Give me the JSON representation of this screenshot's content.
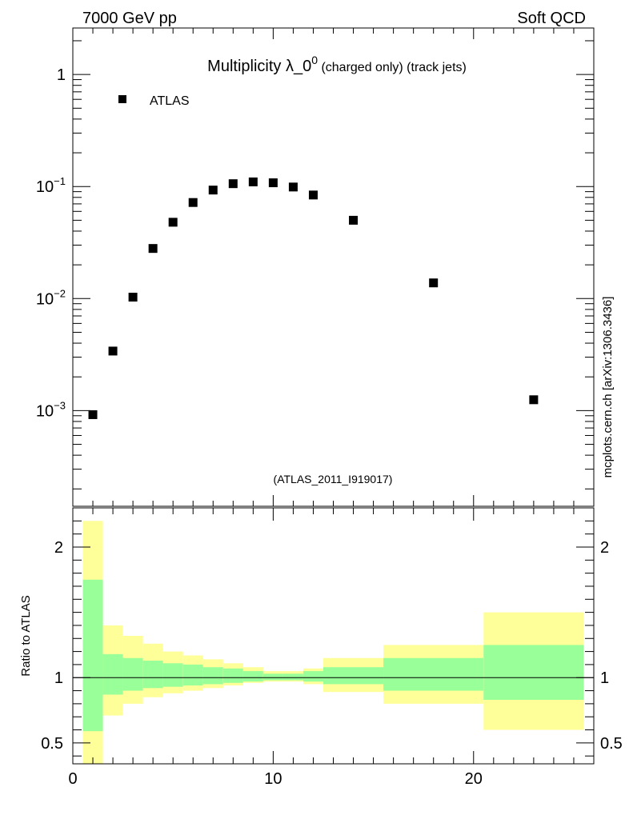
{
  "header": {
    "left": "7000 GeV pp",
    "right": "Soft QCD"
  },
  "side_label": "mcplots.cern.ch [arXiv:1306.3436]",
  "chart_data": [
    {
      "type": "scatter",
      "title_main": "Multiplicity λ_0",
      "title_sup": "0",
      "title_rest": " (charged only) (track jets)",
      "watermark": "(ATLAS_2011_I919017)",
      "yscale": "log",
      "xlim": [
        0,
        26
      ],
      "ylim": [
        0.00014,
        2.6
      ],
      "y_tick_labels": [
        {
          "value": 1,
          "base": "1",
          "exp": ""
        },
        {
          "value": 0.1,
          "base": "10",
          "exp": "−1"
        },
        {
          "value": 0.01,
          "base": "10",
          "exp": "−2"
        },
        {
          "value": 0.001,
          "base": "10",
          "exp": "−3"
        }
      ],
      "legend": {
        "label": "ATLAS",
        "position": "top-left"
      },
      "series": [
        {
          "name": "ATLAS",
          "marker": "square",
          "color": "#000000",
          "x": [
            1,
            2,
            3,
            4,
            5,
            6,
            7,
            8,
            9,
            10,
            11,
            12,
            14,
            18,
            23
          ],
          "y": [
            0.00092,
            0.0034,
            0.0103,
            0.028,
            0.048,
            0.072,
            0.093,
            0.106,
            0.11,
            0.108,
            0.099,
            0.084,
            0.05,
            0.0138,
            0.00125
          ]
        }
      ]
    },
    {
      "type": "area",
      "ylabel": "Ratio to ATLAS",
      "xlim": [
        0,
        26
      ],
      "ylim": [
        0.34,
        2.3
      ],
      "x_ticks": [
        0,
        10,
        20
      ],
      "y_ticks": [
        0.5,
        1,
        2
      ],
      "reference_line": 1,
      "colors": {
        "outer_band": "#ffff99",
        "inner_band": "#99ff99"
      },
      "bins": [
        {
          "xlo": 0.5,
          "xhi": 1.5,
          "inner": [
            0.59,
            1.75
          ],
          "outer": [
            0.3,
            2.2
          ]
        },
        {
          "xlo": 1.5,
          "xhi": 2.5,
          "inner": [
            0.87,
            1.18
          ],
          "outer": [
            0.71,
            1.4
          ]
        },
        {
          "xlo": 2.5,
          "xhi": 3.5,
          "inner": [
            0.9,
            1.15
          ],
          "outer": [
            0.8,
            1.32
          ]
        },
        {
          "xlo": 3.5,
          "xhi": 4.5,
          "inner": [
            0.92,
            1.13
          ],
          "outer": [
            0.85,
            1.26
          ]
        },
        {
          "xlo": 4.5,
          "xhi": 5.5,
          "inner": [
            0.93,
            1.11
          ],
          "outer": [
            0.88,
            1.2
          ]
        },
        {
          "xlo": 5.5,
          "xhi": 6.5,
          "inner": [
            0.94,
            1.1
          ],
          "outer": [
            0.9,
            1.17
          ]
        },
        {
          "xlo": 6.5,
          "xhi": 7.5,
          "inner": [
            0.95,
            1.08
          ],
          "outer": [
            0.92,
            1.14
          ]
        },
        {
          "xlo": 7.5,
          "xhi": 8.5,
          "inner": [
            0.96,
            1.07
          ],
          "outer": [
            0.94,
            1.11
          ]
        },
        {
          "xlo": 8.5,
          "xhi": 9.5,
          "inner": [
            0.97,
            1.05
          ],
          "outer": [
            0.96,
            1.08
          ]
        },
        {
          "xlo": 9.5,
          "xhi": 10.5,
          "inner": [
            0.98,
            1.03
          ],
          "outer": [
            0.97,
            1.05
          ]
        },
        {
          "xlo": 10.5,
          "xhi": 11.5,
          "inner": [
            0.98,
            1.03
          ],
          "outer": [
            0.97,
            1.05
          ]
        },
        {
          "xlo": 11.5,
          "xhi": 12.5,
          "inner": [
            0.97,
            1.05
          ],
          "outer": [
            0.95,
            1.07
          ]
        },
        {
          "xlo": 12.5,
          "xhi": 15.5,
          "inner": [
            0.95,
            1.08
          ],
          "outer": [
            0.89,
            1.15
          ]
        },
        {
          "xlo": 15.5,
          "xhi": 20.5,
          "inner": [
            0.9,
            1.15
          ],
          "outer": [
            0.8,
            1.25
          ]
        },
        {
          "xlo": 20.5,
          "xhi": 25.5,
          "inner": [
            0.83,
            1.25
          ],
          "outer": [
            0.6,
            1.5
          ]
        }
      ]
    }
  ]
}
